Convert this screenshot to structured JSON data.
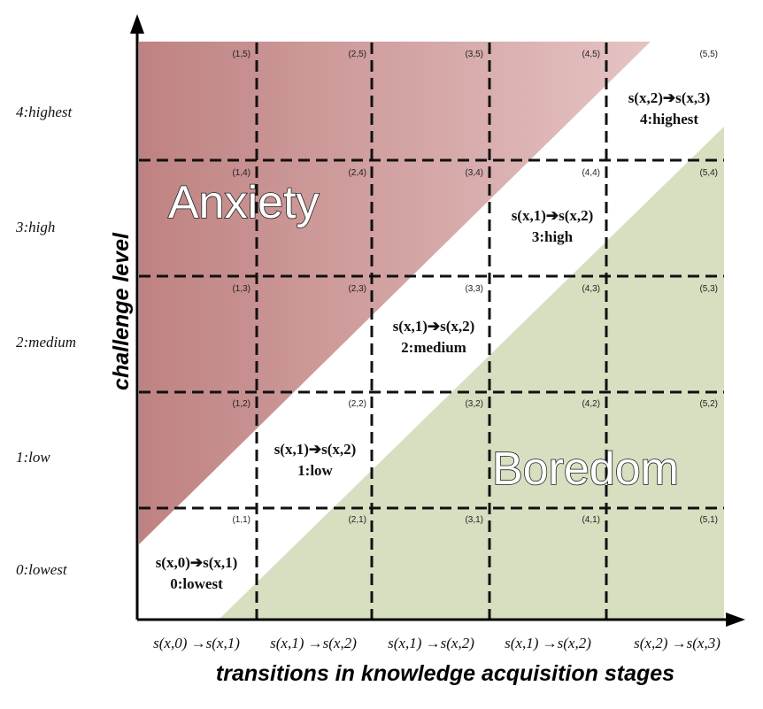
{
  "colors": {
    "anxiety_dark": "#bf8282",
    "anxiety_light": "#e6c3c3",
    "boredom": "#d6dfc0",
    "axis": "#000000",
    "grid": "#111111"
  },
  "y_axis": {
    "title": "challenge level",
    "labels": [
      "0:lowest",
      "1:low",
      "2:medium",
      "3:high",
      "4:highest"
    ]
  },
  "x_axis": {
    "title": "transitions in knowledge acquisition stages",
    "labels": [
      "s(x,0) →s(x,1)",
      "s(x,1) →s(x,2)",
      "s(x,1) →s(x,2)",
      "s(x,1) →s(x,2)",
      "s(x,2) →s(x,3)"
    ]
  },
  "regions": {
    "anxiety": "Anxiety",
    "boredom": "Boredom"
  },
  "coords": [
    "(1,5)",
    "(2,5)",
    "(3,5)",
    "(4,5)",
    "(5,5)",
    "(1,4)",
    "(2,4)",
    "(3,4)",
    "(4,4)",
    "(5,4)",
    "(1,3)",
    "(2,3)",
    "(3,3)",
    "(4,3)",
    "(5,3)",
    "(1,2)",
    "(2,2)",
    "(3,2)",
    "(4,2)",
    "(5,2)",
    "(1,1)",
    "(2,1)",
    "(3,1)",
    "(4,1)",
    "(5,1)"
  ],
  "flow_cells": [
    {
      "transition": "s(x,0)➔s(x,1)",
      "level": "0:lowest"
    },
    {
      "transition": "s(x,1)➔s(x,2)",
      "level": "1:low"
    },
    {
      "transition": "s(x,1)➔s(x,2)",
      "level": "2:medium"
    },
    {
      "transition": "s(x,1)➔s(x,2)",
      "level": "3:high"
    },
    {
      "transition": "s(x,2)➔s(x,3)",
      "level": "4:highest"
    }
  ]
}
